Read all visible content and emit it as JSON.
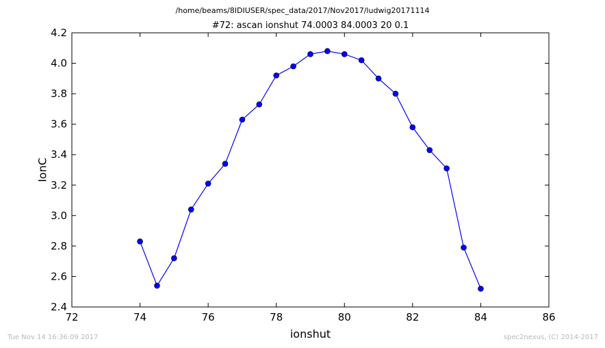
{
  "header": {
    "path": "/home/beams/8IDIUSER/spec_data/2017/Nov2017/ludwig20171114"
  },
  "footer": {
    "timestamp": "Tue Nov 14 16:36:09 2017",
    "credit": "spec2nexus, (C) 2014-2017"
  },
  "chart_data": {
    "type": "line",
    "title": "#72: ascan  ionshut 74.0003 84.0003  20 0.1",
    "xlabel": "ionshut",
    "ylabel": "IonC",
    "xlim": [
      72,
      86
    ],
    "ylim": [
      2.4,
      4.2
    ],
    "xticks": [
      "72",
      "74",
      "76",
      "78",
      "80",
      "82",
      "84",
      "86"
    ],
    "yticks": [
      "2.4",
      "2.6",
      "2.8",
      "3.0",
      "3.2",
      "3.4",
      "3.6",
      "3.8",
      "4.0",
      "4.2"
    ],
    "grid": false,
    "series": [
      {
        "color": "#0000ff",
        "marker": "circle",
        "x": [
          74.0,
          74.5,
          75.0,
          75.5,
          76.0,
          76.5,
          77.0,
          77.5,
          78.0,
          78.5,
          79.0,
          79.5,
          80.0,
          80.5,
          81.0,
          81.5,
          82.0,
          82.5,
          83.0,
          83.5,
          84.0
        ],
        "y": [
          2.83,
          2.54,
          2.72,
          3.04,
          3.21,
          3.34,
          3.63,
          3.73,
          3.92,
          3.98,
          4.06,
          4.08,
          4.06,
          4.02,
          3.9,
          3.8,
          3.58,
          3.43,
          3.31,
          2.79,
          2.52
        ]
      }
    ]
  }
}
